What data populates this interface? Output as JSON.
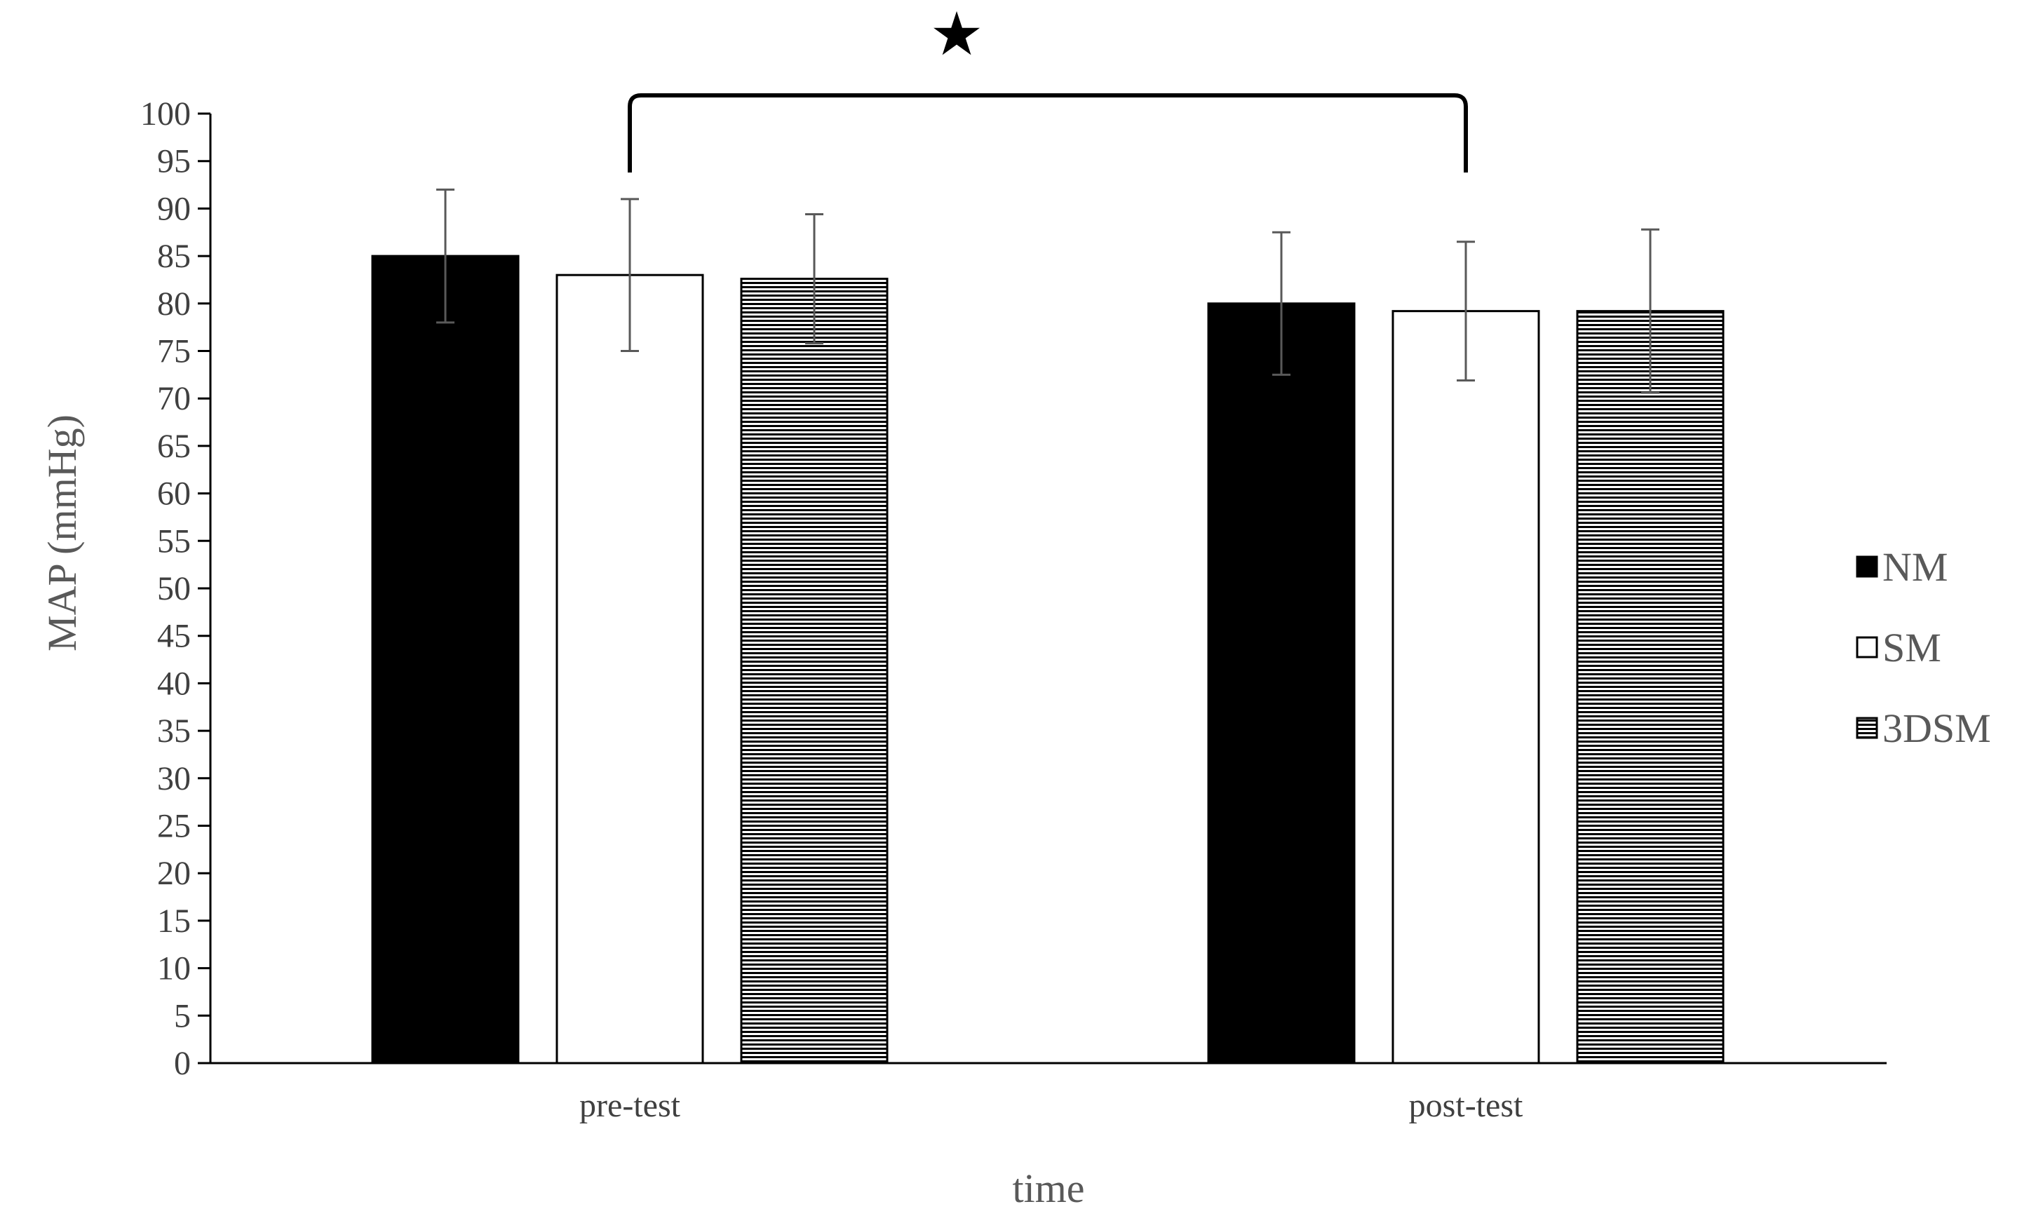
{
  "chart_data": {
    "type": "bar",
    "title": "",
    "xlabel": "time",
    "ylabel": "MAP (mmHg)",
    "categories": [
      "pre-test",
      "post-test"
    ],
    "ylim": [
      0,
      100
    ],
    "y_tick_step": 5,
    "grid": false,
    "legend_position": "right",
    "series": [
      {
        "name": "NM",
        "fill": "solid-black",
        "values": [
          85,
          80
        ],
        "error": [
          7,
          7.5
        ]
      },
      {
        "name": "SM",
        "fill": "white",
        "values": [
          83,
          79.2
        ],
        "error": [
          8,
          7.3
        ]
      },
      {
        "name": "3DSM",
        "fill": "horizontal-stripes",
        "values": [
          82.6,
          79.2
        ],
        "error": [
          6.8,
          8.6
        ]
      }
    ],
    "annotations": [
      {
        "type": "significance-bracket",
        "symbol": "★",
        "from": "SM pre-test",
        "to": "SM post-test"
      }
    ]
  }
}
